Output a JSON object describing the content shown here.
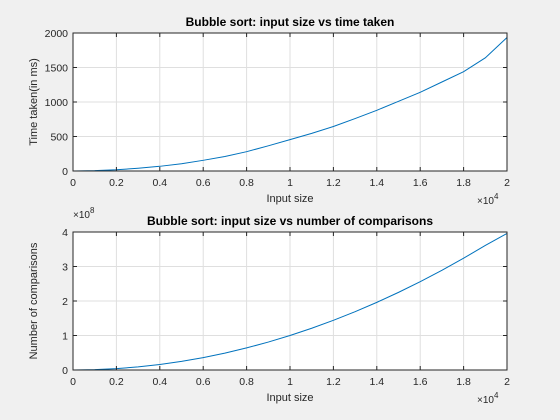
{
  "chart_data": [
    {
      "type": "line",
      "title": "Bubble sort: input size vs time taken",
      "xlabel": "Input size",
      "ylabel": "Time taken(in ms)",
      "xlim": [
        0,
        20000
      ],
      "ylim": [
        0,
        2000
      ],
      "xticks": [
        0,
        2000,
        4000,
        6000,
        8000,
        10000,
        12000,
        14000,
        16000,
        18000,
        20000
      ],
      "xtick_labels": [
        "0",
        "0.2",
        "0.4",
        "0.6",
        "0.8",
        "1",
        "1.2",
        "1.4",
        "1.6",
        "1.8",
        "2"
      ],
      "x_exponent_base": "×10",
      "x_exponent_power": "4",
      "yticks": [
        0,
        500,
        1000,
        1500,
        2000
      ],
      "ytick_labels": [
        "0",
        "500",
        "1000",
        "1500",
        "2000"
      ],
      "y_exponent_base": "",
      "y_exponent_power": "",
      "grid": true,
      "legend": "none",
      "series": [
        {
          "color": "#0072bd",
          "x": [
            0,
            1000,
            2000,
            3000,
            4000,
            5000,
            6000,
            7000,
            8000,
            9000,
            10000,
            11000,
            12000,
            13000,
            14000,
            15000,
            16000,
            17000,
            18000,
            19000,
            20000
          ],
          "y": [
            0,
            5,
            18,
            40,
            68,
            105,
            155,
            210,
            280,
            365,
            455,
            545,
            645,
            760,
            880,
            1010,
            1140,
            1290,
            1440,
            1640,
            1935
          ]
        }
      ]
    },
    {
      "type": "line",
      "title": "Bubble sort: input size vs number of comparisons",
      "xlabel": "Input size",
      "ylabel": "Number of comparisons",
      "xlim": [
        0,
        20000
      ],
      "ylim": [
        0,
        400000000
      ],
      "xticks": [
        0,
        2000,
        4000,
        6000,
        8000,
        10000,
        12000,
        14000,
        16000,
        18000,
        20000
      ],
      "xtick_labels": [
        "0",
        "0.2",
        "0.4",
        "0.6",
        "0.8",
        "1",
        "1.2",
        "1.4",
        "1.6",
        "1.8",
        "2"
      ],
      "x_exponent_base": "×10",
      "x_exponent_power": "4",
      "yticks": [
        0,
        100000000,
        200000000,
        300000000,
        400000000
      ],
      "ytick_labels": [
        "0",
        "1",
        "2",
        "3",
        "4"
      ],
      "y_exponent_base": "×10",
      "y_exponent_power": "8",
      "grid": true,
      "legend": "none",
      "series": [
        {
          "color": "#0072bd",
          "x": [
            0,
            1000,
            2000,
            3000,
            4000,
            5000,
            6000,
            7000,
            8000,
            9000,
            10000,
            11000,
            12000,
            13000,
            14000,
            15000,
            16000,
            17000,
            18000,
            19000,
            20000
          ],
          "y": [
            0,
            1000000,
            4000000,
            9000000,
            16000000,
            25000000,
            36000000,
            49000000,
            64000000,
            81000000,
            100000000,
            121000000,
            144000000,
            169000000,
            196000000,
            225000000,
            256000000,
            289000000,
            324000000,
            361000000,
            396000000
          ]
        }
      ]
    }
  ]
}
